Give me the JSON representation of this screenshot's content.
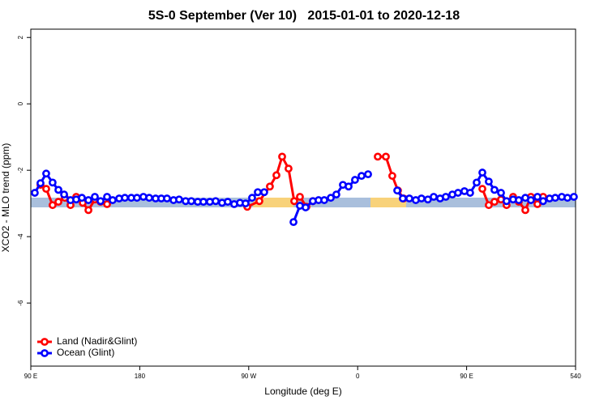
{
  "chart_data": {
    "type": "line",
    "title": "5S-0 September (Ver 10)   2015-01-01 to 2020-12-18",
    "x_label": "Longitude (deg E)",
    "y_label": "XCO2 - MLO trend (ppm)",
    "xlim": [
      90,
      540
    ],
    "xticks": [
      {
        "value": 90,
        "label": "90 E"
      },
      180,
      {
        "value": 270,
        "label": "90 W"
      },
      {
        "value": 360,
        "label": "0"
      },
      {
        "value": 450,
        "label": "90 E"
      },
      540
    ],
    "ylim": [
      -7.9,
      2.25
    ],
    "yticks": [
      -6,
      -4,
      -2,
      0,
      2
    ],
    "legend": "bottom-left",
    "series": [
      {
        "name": "Land (Nadir&Glint)",
        "color": "#ff0000",
        "x": [
          98,
          102.7,
          108,
          112.8,
          118.1,
          122.8,
          127.5,
          132.9,
          137.6,
          142.9,
          147.6,
          153,
          null,
          268.8,
          278.8,
          287.5,
          292.9,
          297.6,
          302.9,
          307.6,
          312.3,
          317.7,
          323,
          null,
          376.6,
          383.3,
          388.6,
          393.3,
          398,
          null,
          463,
          468.3,
          473,
          478.4,
          483,
          488.4,
          493.1,
          498.5,
          503.1,
          508.5,
          513.2
        ],
        "values": [
          -2.44,
          -2.56,
          -3.05,
          -2.95,
          -2.83,
          -3.05,
          -2.8,
          -2.98,
          -3.2,
          -2.88,
          -2.95,
          -3.02,
          null,
          -3.1,
          -2.93,
          -2.49,
          -2.15,
          -1.59,
          -1.95,
          -2.93,
          -2.8,
          -3.1,
          -2.93,
          null,
          -1.59,
          -1.59,
          -2.17,
          -2.61,
          -2.85,
          null,
          -2.56,
          -3.05,
          -2.95,
          -2.88,
          -3.05,
          -2.8,
          -2.95,
          -3.2,
          -2.8,
          -3.02,
          -2.8
        ]
      },
      {
        "name": "Ocean (Glint)",
        "color": "#0000ff",
        "x": [
          93.3,
          98,
          102.7,
          108,
          112.8,
          117.5,
          122.8,
          127.5,
          132.2,
          137.6,
          142.9,
          147.6,
          153,
          157.6,
          163,
          167.7,
          173,
          177.7,
          183,
          187.8,
          193.1,
          197.8,
          202.5,
          207.9,
          212.5,
          217.9,
          222.6,
          227.9,
          232.6,
          237.9,
          242.7,
          248,
          252.7,
          258,
          262.8,
          267.4,
          272.8,
          277.5,
          282.8,
          null,
          307,
          312.3,
          317,
          323,
          327.7,
          332.4,
          337.8,
          342.4,
          347.8,
          352.5,
          357.8,
          363.2,
          368.6,
          null,
          392.7,
          397.3,
          402.7,
          408,
          412.7,
          418,
          422.8,
          428.1,
          432.8,
          438.2,
          442.9,
          448.2,
          452.9,
          458.3,
          463,
          468.3,
          473,
          478.4,
          483,
          488.4,
          493.1,
          498.5,
          503.1,
          508.5,
          513.2,
          518.5,
          523.2,
          528.6,
          533.3,
          538.6
        ],
        "values": [
          -2.68,
          -2.39,
          -2.1,
          -2.37,
          -2.59,
          -2.73,
          -2.9,
          -2.88,
          -2.83,
          -2.9,
          -2.8,
          -2.93,
          -2.8,
          -2.9,
          -2.85,
          -2.83,
          -2.83,
          -2.83,
          -2.8,
          -2.83,
          -2.85,
          -2.85,
          -2.85,
          -2.9,
          -2.88,
          -2.93,
          -2.93,
          -2.95,
          -2.95,
          -2.95,
          -2.93,
          -2.98,
          -2.95,
          -3.02,
          -2.98,
          -3.0,
          -2.83,
          -2.66,
          -2.66,
          null,
          -3.56,
          -3.07,
          -3.12,
          -2.93,
          -2.9,
          -2.9,
          -2.83,
          -2.73,
          -2.44,
          -2.49,
          -2.29,
          -2.17,
          -2.12,
          null,
          -2.61,
          -2.85,
          -2.85,
          -2.9,
          -2.85,
          -2.88,
          -2.8,
          -2.85,
          -2.8,
          -2.73,
          -2.68,
          -2.63,
          -2.68,
          -2.37,
          -2.07,
          -2.34,
          -2.59,
          -2.68,
          -2.93,
          -2.88,
          -2.9,
          -2.83,
          -2.9,
          -2.8,
          -2.93,
          -2.85,
          -2.83,
          -2.8,
          -2.83,
          -2.8
        ]
      }
    ]
  }
}
